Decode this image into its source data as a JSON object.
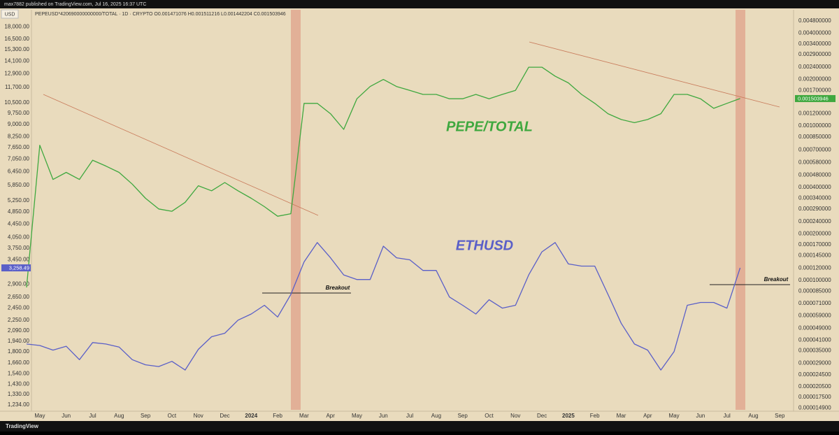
{
  "header": {
    "published": "max7882 published on TradingView.com, Jul 16, 2025 16:37 UTC",
    "symbol_line": "PEPEUSD*420690000000000/TOTAL · 1D · CRYPTO  O0.001471076  H0.001511216  L0.001442204  C0.001503946"
  },
  "chart_data": {
    "type": "line",
    "y_unit": "USD",
    "log_scale": true,
    "grid": false,
    "categories": [
      null,
      "May",
      null,
      "Jun",
      null,
      "Jul",
      null,
      "Aug",
      null,
      "Sep",
      null,
      "Oct",
      null,
      "Nov",
      null,
      "Dec",
      null,
      "2024",
      null,
      "Feb",
      null,
      "Mar",
      null,
      "Apr",
      null,
      "May",
      null,
      "Jun",
      null,
      "Jul",
      null,
      "Aug",
      null,
      "Sep",
      null,
      "Oct",
      null,
      "Nov",
      null,
      "Dec",
      null,
      "2025",
      null,
      "Feb",
      null,
      "Mar",
      null,
      "Apr",
      null,
      "May",
      null,
      "Jun",
      null,
      "Jul",
      null,
      "Aug",
      null,
      "Sep"
    ],
    "series": [
      {
        "name": "PEPE/TOTAL",
        "color": "#3fa83f",
        "axis": "y2",
        "values": [
          9e-05,
          0.00075,
          0.00045,
          0.0005,
          0.00045,
          0.0006,
          0.00055,
          0.0005,
          0.00042,
          0.00034,
          0.00029,
          0.00028,
          0.00032,
          0.00041,
          0.00038,
          0.00043,
          0.00038,
          0.00034,
          0.0003,
          0.00026,
          0.00027,
          0.0014,
          0.0014,
          0.0012,
          0.00095,
          0.0015,
          0.0018,
          0.002,
          0.0018,
          0.0017,
          0.0016,
          0.0016,
          0.0015,
          0.0015,
          0.0016,
          0.0015,
          0.0016,
          0.0017,
          0.0024,
          0.0024,
          0.0021,
          0.0019,
          0.0016,
          0.0014,
          0.0012,
          0.0011,
          0.00105,
          0.0011,
          0.0012,
          0.0016,
          0.0016,
          0.0015,
          0.0013,
          0.0014,
          0.001503946,
          null,
          null,
          null
        ]
      },
      {
        "name": "ETHUSD",
        "color": "#5a5fc8",
        "axis": "y",
        "values": [
          1900,
          1880,
          1820,
          1870,
          1700,
          1920,
          1900,
          1860,
          1700,
          1640,
          1620,
          1680,
          1580,
          1830,
          2000,
          2050,
          2250,
          2350,
          2500,
          2300,
          2700,
          3400,
          3900,
          3500,
          3100,
          3000,
          3000,
          3800,
          3500,
          3450,
          3200,
          3200,
          2650,
          2500,
          2350,
          2600,
          2450,
          2500,
          3100,
          3650,
          3900,
          3350,
          3300,
          3300,
          2700,
          2200,
          1900,
          1820,
          1580,
          1800,
          2500,
          2550,
          2550,
          2450,
          3258.49,
          null,
          null,
          null
        ],
        "value_labels": [
          null,
          null,
          null,
          null,
          null,
          null,
          null,
          null,
          null,
          null,
          null,
          null,
          null,
          null,
          null,
          null,
          null,
          null,
          null,
          null,
          null,
          null,
          null,
          null,
          null,
          null,
          null,
          null,
          null,
          null,
          null,
          null,
          null,
          null,
          null,
          null,
          null,
          null,
          null,
          null,
          null,
          null,
          null,
          null,
          null,
          null,
          null,
          null,
          null,
          null,
          null,
          null,
          null,
          null,
          "3,258.49",
          null,
          null,
          null
        ]
      }
    ],
    "annotations": [
      "Breakout",
      "Breakout"
    ],
    "ylim": [
      1180,
      19500
    ],
    "yticks": [
      {
        "value": 18000,
        "label": "18,000.00"
      },
      {
        "value": 16500,
        "label": "16,500.00"
      },
      {
        "value": 15300,
        "label": "15,300.00"
      },
      {
        "value": 14100,
        "label": "14,100.00"
      },
      {
        "value": 12900,
        "label": "12,900.00"
      },
      {
        "value": 11700,
        "label": "11,700.00"
      },
      {
        "value": 10500,
        "label": "10,500.00"
      },
      {
        "value": 9750,
        "label": "9,750.00"
      },
      {
        "value": 9000,
        "label": "9,000.00"
      },
      {
        "value": 8250,
        "label": "8,250.00"
      },
      {
        "value": 7650,
        "label": "7,650.00"
      },
      {
        "value": 7050,
        "label": "7,050.00"
      },
      {
        "value": 6450,
        "label": "6,450.00"
      },
      {
        "value": 5850,
        "label": "5,850.00"
      },
      {
        "value": 5250,
        "label": "5,250.00"
      },
      {
        "value": 4850,
        "label": "4,850.00"
      },
      {
        "value": 4450,
        "label": "4,450.00"
      },
      {
        "value": 4050,
        "label": "4,050.00"
      },
      {
        "value": 3750,
        "label": "3,750.00"
      },
      {
        "value": 3450,
        "label": "3,450.00"
      },
      {
        "value": 2900,
        "label": "2,900.00"
      },
      {
        "value": 2650,
        "label": "2,650.00"
      },
      {
        "value": 2450,
        "label": "2,450.00"
      },
      {
        "value": 2250,
        "label": "2,250.00"
      },
      {
        "value": 2090,
        "label": "2,090.00"
      },
      {
        "value": 1940,
        "label": "1,940.00"
      },
      {
        "value": 1800,
        "label": "1,800.00"
      },
      {
        "value": 1660,
        "label": "1,660.00"
      },
      {
        "value": 1540,
        "label": "1,540.00"
      },
      {
        "value": 1430,
        "label": "1,430.00"
      },
      {
        "value": 1330,
        "label": "1,330.00"
      },
      {
        "value": 1234,
        "label": "1,234.00"
      }
    ],
    "y2lim": [
      1.42e-05,
      0.0052
    ],
    "y2ticks": [
      {
        "value": 0.0048,
        "label": "0.004800000"
      },
      {
        "value": 0.004,
        "label": "0.004000000"
      },
      {
        "value": 0.0034,
        "label": "0.003400000"
      },
      {
        "value": 0.0029,
        "label": "0.002900000"
      },
      {
        "value": 0.0024,
        "label": "0.002400000"
      },
      {
        "value": 0.002,
        "label": "0.002000000"
      },
      {
        "value": 0.0017,
        "label": "0.001700000"
      },
      {
        "value": 0.0012,
        "label": "0.001200000"
      },
      {
        "value": 0.001,
        "label": "0.001000000"
      },
      {
        "value": 0.00085,
        "label": "0.000850000"
      },
      {
        "value": 0.0007,
        "label": "0.000700000"
      },
      {
        "value": 0.00058,
        "label": "0.000580000"
      },
      {
        "value": 0.00048,
        "label": "0.000480000"
      },
      {
        "value": 0.0004,
        "label": "0.000400000"
      },
      {
        "value": 0.00034,
        "label": "0.000340000"
      },
      {
        "value": 0.00029,
        "label": "0.000290000"
      },
      {
        "value": 0.00024,
        "label": "0.000240000"
      },
      {
        "value": 0.0002,
        "label": "0.000200000"
      },
      {
        "value": 0.00017,
        "label": "0.000170000"
      },
      {
        "value": 0.000145,
        "label": "0.000145000"
      },
      {
        "value": 0.00012,
        "label": "0.000120000"
      },
      {
        "value": 0.0001,
        "label": "0.000100000"
      },
      {
        "value": 8.5e-05,
        "label": "0.000085000"
      },
      {
        "value": 7.1e-05,
        "label": "0.000071000"
      },
      {
        "value": 5.9e-05,
        "label": "0.000059000"
      },
      {
        "value": 4.9e-05,
        "label": "0.000049000"
      },
      {
        "value": 4.1e-05,
        "label": "0.000041000"
      },
      {
        "value": 3.5e-05,
        "label": "0.000035000"
      },
      {
        "value": 2.9e-05,
        "label": "0.000029000"
      },
      {
        "value": 2.45e-05,
        "label": "0.000024500"
      },
      {
        "value": 2.05e-05,
        "label": "0.000020500"
      },
      {
        "value": 1.75e-05,
        "label": "0.000017500"
      },
      {
        "value": 1.49e-05,
        "label": "0.000014900"
      }
    ]
  },
  "footer": {
    "brand": "TradingView"
  }
}
